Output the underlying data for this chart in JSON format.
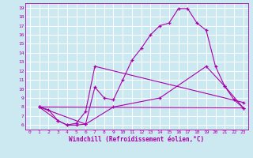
{
  "xlabel": "Windchill (Refroidissement éolien,°C)",
  "bg_color": "#cce8f0",
  "line_color": "#aa00aa",
  "grid_color": "#ffffff",
  "xlim": [
    -0.5,
    23.5
  ],
  "ylim": [
    5.5,
    19.5
  ],
  "xticks": [
    0,
    1,
    2,
    3,
    4,
    5,
    6,
    7,
    8,
    9,
    10,
    11,
    12,
    13,
    14,
    15,
    16,
    17,
    18,
    19,
    20,
    21,
    22,
    23
  ],
  "yticks": [
    6,
    7,
    8,
    9,
    10,
    11,
    12,
    13,
    14,
    15,
    16,
    17,
    18,
    19
  ],
  "curve1_x": [
    1,
    2,
    3,
    4,
    5,
    6,
    7,
    8,
    9,
    10,
    11,
    12,
    13,
    14,
    15,
    16,
    17,
    18,
    19,
    20,
    21,
    22,
    23
  ],
  "curve1_y": [
    8.0,
    7.7,
    6.5,
    6.0,
    6.0,
    6.1,
    10.2,
    9.0,
    8.8,
    11.0,
    13.2,
    14.5,
    16.0,
    17.0,
    17.3,
    18.9,
    18.9,
    17.3,
    16.5,
    12.5,
    10.3,
    8.8,
    7.9
  ],
  "curve2_x": [
    1,
    3,
    4,
    5,
    6,
    7,
    23
  ],
  "curve2_y": [
    8.0,
    6.5,
    6.0,
    6.2,
    7.5,
    12.5,
    8.5
  ],
  "curve3_x": [
    1,
    6,
    9,
    14,
    19,
    21,
    23
  ],
  "curve3_y": [
    8.0,
    6.1,
    8.0,
    9.0,
    12.5,
    10.3,
    7.9
  ],
  "curve4_x": [
    1,
    23
  ],
  "curve4_y": [
    8.0,
    7.9
  ]
}
